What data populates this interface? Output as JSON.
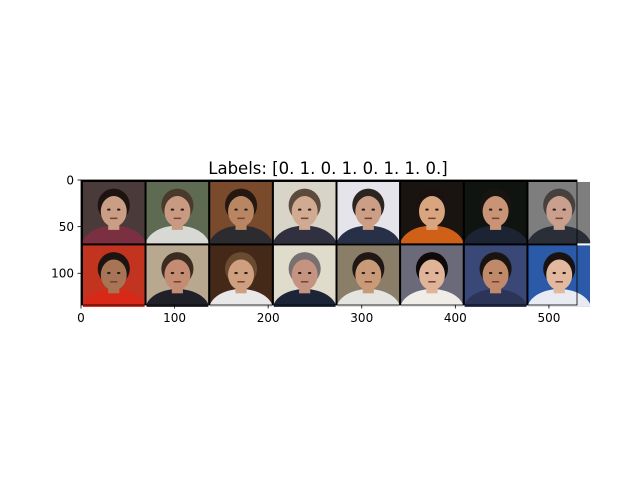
{
  "figure": {
    "background": "#ffffff"
  },
  "chart_data": {
    "type": "image",
    "title": "Labels: [0. 1. 0. 1. 0. 1. 1. 0.]",
    "xlabel": "",
    "ylabel": "",
    "xlim": [
      0,
      530
    ],
    "ylim": [
      134,
      0
    ],
    "xticks": [
      0,
      100,
      200,
      300,
      400,
      500
    ],
    "xtick_labels": [
      "0",
      "100",
      "200",
      "300",
      "400",
      "500"
    ],
    "yticks": [
      0,
      50,
      100
    ],
    "ytick_labels": [
      "0",
      "50",
      "100"
    ],
    "grid": false,
    "legend": "none",
    "image_grid": {
      "rows": 2,
      "cols": 8,
      "tile_size_data": 66,
      "padding_data": 2,
      "padding_color": "#000000"
    },
    "tiles": [
      {
        "row": 0,
        "col": 0,
        "name": "face-tile-1",
        "bg": "#4a3a3a",
        "skin": "#c99e84",
        "hair": "#1c1410",
        "shirt": "#7a3040"
      },
      {
        "row": 0,
        "col": 1,
        "name": "face-tile-2",
        "bg": "#5f6a52",
        "skin": "#c99a82",
        "hair": "#4a3a2c",
        "shirt": "#d8d8d4"
      },
      {
        "row": 0,
        "col": 2,
        "name": "face-tile-3",
        "bg": "#7a4a2c",
        "skin": "#b88662",
        "hair": "#241810",
        "shirt": "#2c2c30"
      },
      {
        "row": 0,
        "col": 3,
        "name": "face-tile-4",
        "bg": "#d8d4c8",
        "skin": "#d1aa92",
        "hair": "#5c4a3c",
        "shirt": "#303040"
      },
      {
        "row": 0,
        "col": 4,
        "name": "face-tile-5",
        "bg": "#e4e4ea",
        "skin": "#cc9e86",
        "hair": "#2c2420",
        "shirt": "#283048"
      },
      {
        "row": 0,
        "col": 5,
        "name": "face-tile-6",
        "bg": "#1a1410",
        "skin": "#d9a57e",
        "hair": "#1a1210",
        "shirt": "#d06018"
      },
      {
        "row": 0,
        "col": 6,
        "name": "face-tile-7",
        "bg": "#0f1410",
        "skin": "#c99476",
        "hair": "#181410",
        "shirt": "#1c2434"
      },
      {
        "row": 0,
        "col": 7,
        "name": "face-tile-8",
        "bg": "#7e7e7e",
        "skin": "#c9a08e",
        "hair": "#48403c",
        "shirt": "#2a2e38"
      },
      {
        "row": 1,
        "col": 0,
        "name": "face-tile-9",
        "bg": "#c23420",
        "skin": "#a87456",
        "hair": "#1c1410",
        "shirt": "#d82818"
      },
      {
        "row": 1,
        "col": 1,
        "name": "face-tile-10",
        "bg": "#b8a890",
        "skin": "#c48c72",
        "hair": "#3a2c20",
        "shirt": "#202028"
      },
      {
        "row": 1,
        "col": 2,
        "name": "face-tile-11",
        "bg": "#442818",
        "skin": "#cfa080",
        "hair": "#6a4a30",
        "shirt": "#e8e8e8"
      },
      {
        "row": 1,
        "col": 3,
        "name": "face-tile-12",
        "bg": "#e0dccc",
        "skin": "#c49480",
        "hair": "#787070",
        "shirt": "#1c2438"
      },
      {
        "row": 1,
        "col": 4,
        "name": "face-tile-13",
        "bg": "#8a7e68",
        "skin": "#c99a78",
        "hair": "#201814",
        "shirt": "#e4e4e0"
      },
      {
        "row": 1,
        "col": 5,
        "name": "face-tile-14",
        "bg": "#6a6a7a",
        "skin": "#e0b498",
        "hair": "#0e0a0a",
        "shirt": "#f0ece8"
      },
      {
        "row": 1,
        "col": 6,
        "name": "face-tile-15",
        "bg": "#3a4878",
        "skin": "#c08a6a",
        "hair": "#1a1410",
        "shirt": "#2c3458"
      },
      {
        "row": 1,
        "col": 7,
        "name": "face-tile-16",
        "bg": "#2a5aa8",
        "skin": "#e2b89e",
        "hair": "#1a1210",
        "shirt": "#e8ecf2"
      }
    ]
  }
}
